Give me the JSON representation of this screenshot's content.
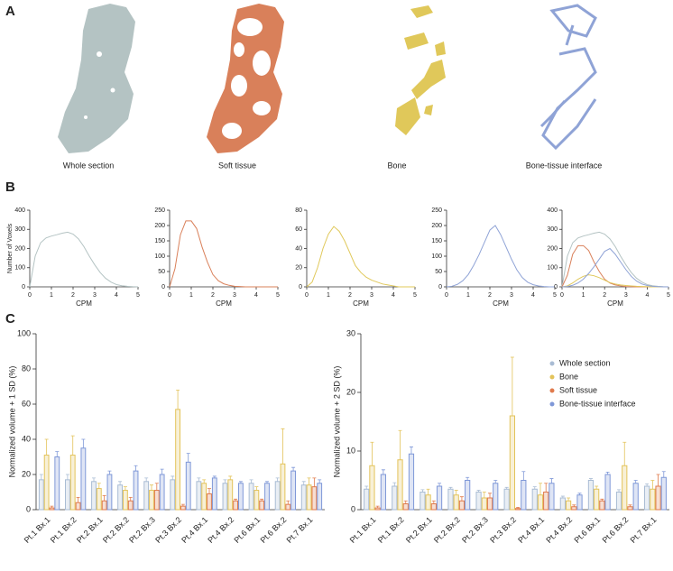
{
  "panel_labels": [
    "A",
    "B",
    "C"
  ],
  "images": {
    "labels": [
      "Whole section",
      "Soft tissue",
      "Bone",
      "Bone-tissue interface"
    ]
  },
  "chart_data": [
    {
      "type": "line",
      "ylabel": "Number of Voxels",
      "xlabel": "CPM",
      "x": [
        0,
        0.25,
        0.5,
        0.75,
        1,
        1.25,
        1.5,
        1.75,
        2,
        2.25,
        2.5,
        2.75,
        3,
        3.25,
        3.5,
        3.75,
        4,
        4.25,
        4.5,
        4.75,
        5
      ],
      "xlim": [
        0,
        5
      ],
      "xticks": [
        0,
        1,
        2,
        3,
        4,
        5
      ],
      "ylim": [
        0,
        400
      ],
      "yticks": [
        0,
        100,
        200,
        300,
        400
      ],
      "series": [
        {
          "color": "#b4c3c3",
          "values": [
            0,
            160,
            230,
            255,
            265,
            272,
            280,
            285,
            275,
            250,
            210,
            160,
            115,
            75,
            45,
            25,
            12,
            6,
            3,
            1,
            0
          ]
        }
      ]
    },
    {
      "type": "line",
      "xlabel": "CPM",
      "x": [
        0,
        0.25,
        0.5,
        0.75,
        1,
        1.25,
        1.5,
        1.75,
        2,
        2.25,
        2.5,
        2.75,
        3,
        3.25,
        3.5,
        3.75,
        4,
        4.25,
        4.5,
        4.75,
        5
      ],
      "xlim": [
        0,
        5
      ],
      "xticks": [
        0,
        1,
        2,
        3,
        4,
        5
      ],
      "ylim": [
        0,
        250
      ],
      "yticks": [
        0,
        50,
        100,
        150,
        200,
        250
      ],
      "series": [
        {
          "color": "#d9805a",
          "values": [
            0,
            60,
            170,
            215,
            215,
            190,
            130,
            80,
            40,
            20,
            10,
            5,
            2,
            1,
            0,
            0,
            0,
            0,
            0,
            0,
            0
          ]
        }
      ]
    },
    {
      "type": "line",
      "xlabel": "CPM",
      "x": [
        0,
        0.25,
        0.5,
        0.75,
        1,
        1.25,
        1.5,
        1.75,
        2,
        2.25,
        2.5,
        2.75,
        3,
        3.25,
        3.5,
        3.75,
        4,
        4.25,
        4.5,
        4.75,
        5
      ],
      "xlim": [
        0,
        5
      ],
      "xticks": [
        0,
        1,
        2,
        3,
        4,
        5
      ],
      "ylim": [
        0,
        80
      ],
      "yticks": [
        0,
        20,
        40,
        60,
        80
      ],
      "series": [
        {
          "color": "#e0c85a",
          "values": [
            0,
            5,
            20,
            40,
            55,
            63,
            58,
            48,
            35,
            22,
            15,
            10,
            7,
            5,
            3,
            2,
            1,
            0,
            0,
            0,
            0
          ]
        }
      ]
    },
    {
      "type": "line",
      "xlabel": "CPM",
      "x": [
        0,
        0.25,
        0.5,
        0.75,
        1,
        1.25,
        1.5,
        1.75,
        2,
        2.25,
        2.5,
        2.75,
        3,
        3.25,
        3.5,
        3.75,
        4,
        4.25,
        4.5,
        4.75,
        5
      ],
      "xlim": [
        0,
        5
      ],
      "xticks": [
        0,
        1,
        2,
        3,
        4,
        5
      ],
      "ylim": [
        0,
        250
      ],
      "yticks": [
        0,
        50,
        100,
        150,
        200,
        250
      ],
      "series": [
        {
          "color": "#8fa3d6",
          "values": [
            0,
            2,
            8,
            20,
            40,
            70,
            105,
            145,
            185,
            200,
            170,
            130,
            90,
            55,
            30,
            15,
            7,
            3,
            1,
            0,
            0
          ]
        }
      ]
    },
    {
      "type": "line",
      "xlabel": "CPM",
      "x": [
        0,
        0.25,
        0.5,
        0.75,
        1,
        1.25,
        1.5,
        1.75,
        2,
        2.25,
        2.5,
        2.75,
        3,
        3.25,
        3.5,
        3.75,
        4,
        4.25,
        4.5,
        4.75,
        5
      ],
      "xlim": [
        0,
        5
      ],
      "xticks": [
        0,
        1,
        2,
        3,
        4,
        5
      ],
      "ylim": [
        0,
        400
      ],
      "yticks": [
        0,
        100,
        200,
        300,
        400
      ],
      "series": [
        {
          "color": "#b4c3c3",
          "values": [
            0,
            160,
            230,
            255,
            265,
            272,
            280,
            285,
            275,
            250,
            210,
            160,
            115,
            75,
            45,
            25,
            12,
            6,
            3,
            1,
            0
          ]
        },
        {
          "color": "#d9805a",
          "values": [
            0,
            60,
            170,
            215,
            215,
            190,
            130,
            80,
            40,
            20,
            10,
            5,
            2,
            1,
            0,
            0,
            0,
            0,
            0,
            0,
            0
          ]
        },
        {
          "color": "#e0c85a",
          "values": [
            0,
            5,
            20,
            40,
            55,
            63,
            58,
            48,
            35,
            22,
            15,
            10,
            7,
            5,
            3,
            2,
            1,
            0,
            0,
            0,
            0
          ]
        },
        {
          "color": "#8fa3d6",
          "values": [
            0,
            2,
            8,
            20,
            40,
            70,
            105,
            145,
            185,
            200,
            170,
            130,
            90,
            55,
            30,
            15,
            7,
            3,
            1,
            0,
            0
          ]
        }
      ]
    },
    {
      "type": "bar",
      "ylabel": "Normalized volume + 1 SD (%)",
      "categories": [
        "Pt.1 Bx.1",
        "Pt.1 Bx.2",
        "Pt.2 Bx.1",
        "Pt.2 Bx.2",
        "Pt.2 Bx.3",
        "Pt.3 Bx.2",
        "Pt.4 Bx.1",
        "Pt.4 Bx.2",
        "Pt.6 Bx.1",
        "Pt.6 Bx.2",
        "Pt.7 Bx.1"
      ],
      "ylim": [
        0,
        100
      ],
      "yticks": [
        0,
        20,
        40,
        60,
        80,
        100
      ],
      "series": [
        {
          "color": "#a9bcd4",
          "values": [
            17,
            17,
            16,
            14,
            16,
            17,
            16,
            15,
            15,
            16,
            14
          ],
          "errors": [
            3,
            3,
            2,
            2,
            2,
            2,
            2,
            2,
            2,
            2,
            2
          ]
        },
        {
          "color": "#e3c35a",
          "values": [
            31,
            31,
            12,
            11,
            11,
            57,
            15,
            17,
            11,
            26,
            14
          ],
          "errors": [
            9,
            11,
            3,
            2,
            3,
            11,
            2,
            2,
            2,
            20,
            4
          ]
        },
        {
          "color": "#e07a4c",
          "values": [
            1,
            4,
            5,
            5,
            11,
            2,
            9,
            5,
            5,
            3,
            13
          ],
          "errors": [
            1,
            3,
            3,
            2,
            4,
            1,
            3,
            1,
            1,
            2,
            5
          ]
        },
        {
          "color": "#7f98d8",
          "values": [
            30,
            35,
            20,
            22,
            20,
            27,
            18,
            15,
            15,
            22,
            15
          ],
          "errors": [
            3,
            5,
            2,
            3,
            3,
            5,
            1,
            1,
            1,
            2,
            2
          ]
        }
      ]
    },
    {
      "type": "bar",
      "ylabel": "Normalized volume + 2 SD (%)",
      "legend": "top-right",
      "categories": [
        "Pt.1 Bx.1",
        "Pt.1 Bx.2",
        "Pt.2 Bx.1",
        "Pt.2 Bx.2",
        "Pt.2 Bx.3",
        "Pt.3 Bx.2",
        "Pt.4 Bx.1",
        "Pt.4 Bx.2",
        "Pt.6 Bx.1",
        "Pt.6 Bx.2",
        "Pt.7 Bx.1"
      ],
      "ylim": [
        0,
        30
      ],
      "yticks": [
        0,
        10,
        20,
        30
      ],
      "series": [
        {
          "name": "Whole section",
          "color": "#a9bcd4",
          "values": [
            3.5,
            4,
            3,
            3.5,
            3,
            3.5,
            3.5,
            2,
            5,
            3,
            4
          ],
          "errors": [
            0.5,
            0.6,
            0.4,
            0.3,
            0.3,
            0.3,
            0.4,
            0.3,
            0.3,
            0.4,
            0.4
          ]
        },
        {
          "name": "Bone",
          "color": "#e3c35a",
          "values": [
            7.5,
            8.5,
            2.5,
            2.5,
            2,
            16,
            2.5,
            1.5,
            3.5,
            7.5,
            3.5
          ],
          "errors": [
            4,
            5,
            1,
            0.8,
            1,
            10,
            2,
            0.5,
            0.5,
            4,
            1.5
          ]
        },
        {
          "name": "Soft tissue",
          "color": "#e07a4c",
          "values": [
            0.3,
            1,
            1,
            1.5,
            2,
            0.2,
            3,
            0.5,
            1.5,
            0.5,
            4
          ],
          "errors": [
            0.3,
            0.5,
            0.5,
            0.7,
            0.8,
            0.2,
            1.5,
            0.3,
            0.3,
            0.3,
            2
          ]
        },
        {
          "name": "Bone-tissue interface",
          "color": "#7f98d8",
          "values": [
            6,
            9.5,
            4,
            5,
            4.5,
            5,
            4.5,
            2.5,
            6,
            4.5,
            5.5
          ],
          "errors": [
            0.8,
            1.2,
            0.5,
            0.5,
            0.5,
            1.5,
            0.8,
            0.3,
            0.4,
            0.5,
            1
          ]
        }
      ]
    }
  ]
}
